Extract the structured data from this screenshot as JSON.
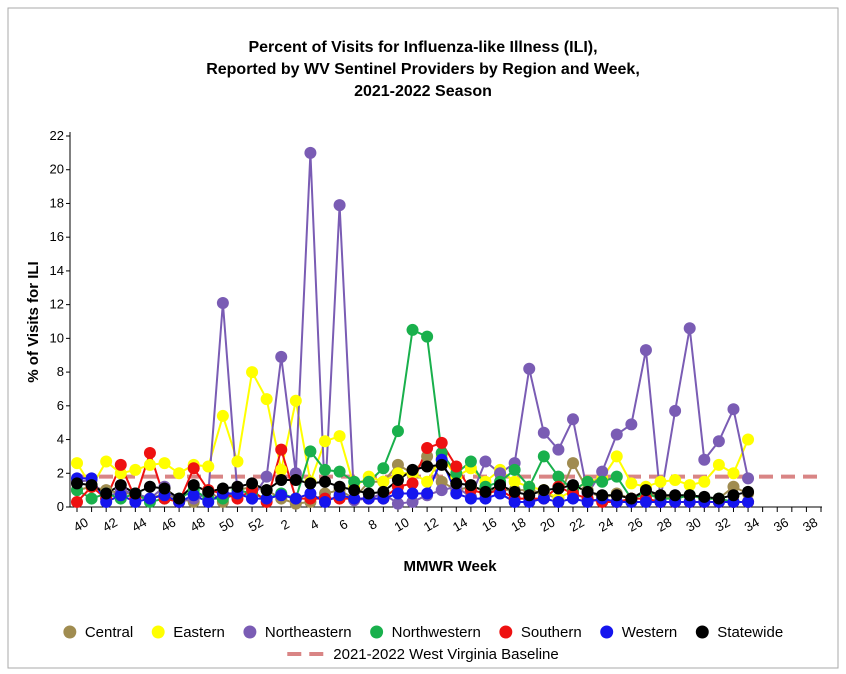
{
  "chart_data": {
    "type": "line",
    "title": [
      "Percent of Visits for Influenza-like Illness (ILI),",
      "Reported by WV Sentinel Providers by Region and Week,",
      "2021-2022 Season"
    ],
    "x_label": "MMWR Week",
    "y_label": "% of Visits for ILI",
    "categories": [
      "40",
      null,
      "42",
      null,
      "44",
      null,
      "46",
      null,
      "48",
      null,
      "50",
      null,
      "52",
      null,
      "2",
      null,
      "4",
      null,
      "6",
      null,
      "8",
      null,
      "10",
      null,
      "12",
      null,
      "14",
      null,
      "16",
      null,
      "18",
      null,
      "20",
      null,
      "22",
      null,
      "24",
      null,
      "26",
      null,
      "28",
      null,
      "30",
      null,
      "32",
      null,
      "34",
      null,
      "36",
      null,
      "38",
      null
    ],
    "ylim": [
      0,
      22
    ],
    "yticks": [
      0,
      2,
      4,
      6,
      8,
      10,
      12,
      14,
      16,
      18,
      20,
      22
    ],
    "series": [
      {
        "name": "Central",
        "color": "#a08c50",
        "values": [
          1.0,
          1.2,
          1.0,
          0.8,
          0.8,
          0.5,
          0.8,
          0.5,
          0.3,
          1.0,
          0.3,
          1.0,
          1.2,
          1.0,
          0.5,
          0.2,
          0.3,
          0.8,
          1.0,
          0.5,
          1.5,
          1.5,
          2.5,
          2.0,
          3.0,
          1.5,
          1.0,
          1.2,
          1.0,
          1.0,
          1.0,
          1.0,
          0.8,
          0.5,
          2.6,
          1.0,
          0.5,
          0.8,
          0.5,
          0.8,
          0.7,
          0.5,
          0.7,
          0.5,
          0.5,
          1.2,
          0.8,
          null,
          null,
          null,
          null,
          null
        ]
      },
      {
        "name": "Eastern",
        "color": "#ffff00",
        "values": [
          2.6,
          1.2,
          2.7,
          2.0,
          2.2,
          2.5,
          2.6,
          2.0,
          2.5,
          2.4,
          5.4,
          2.7,
          8.0,
          6.4,
          2.2,
          6.3,
          1.5,
          3.9,
          4.2,
          1.2,
          1.8,
          1.5,
          2.0,
          2.0,
          1.5,
          3.0,
          1.8,
          2.3,
          1.5,
          2.2,
          1.5,
          1.2,
          1.0,
          0.5,
          1.0,
          1.5,
          1.7,
          3.0,
          1.4,
          1.2,
          1.5,
          1.6,
          1.3,
          1.5,
          2.5,
          2.0,
          4.0,
          null,
          null,
          null,
          null,
          null
        ]
      },
      {
        "name": "Northeastern",
        "color": "#7a5cb4",
        "values": [
          1.5,
          1.6,
          0.5,
          1.0,
          0.8,
          0.5,
          1.2,
          0.3,
          0.5,
          0.8,
          12.1,
          0.8,
          0.5,
          1.8,
          8.9,
          2.0,
          21.0,
          0.5,
          17.9,
          0.4,
          0.5,
          0.8,
          0.2,
          0.3,
          0.7,
          1.0,
          1.2,
          0.6,
          2.7,
          2.0,
          2.6,
          8.2,
          4.4,
          3.4,
          5.2,
          0.8,
          2.1,
          4.3,
          4.9,
          9.3,
          0.5,
          5.7,
          10.6,
          2.8,
          3.9,
          5.8,
          1.7,
          null,
          null,
          null,
          null,
          null
        ]
      },
      {
        "name": "Northwestern",
        "color": "#19b04c",
        "values": [
          1.0,
          0.5,
          0.8,
          0.5,
          0.8,
          0.3,
          0.5,
          0.5,
          1.0,
          0.5,
          0.5,
          1.0,
          0.8,
          0.5,
          0.8,
          0.5,
          3.3,
          2.2,
          2.1,
          1.5,
          1.5,
          2.3,
          4.5,
          10.5,
          10.1,
          3.2,
          2.0,
          2.7,
          1.2,
          1.5,
          2.2,
          1.2,
          3.0,
          1.8,
          1.0,
          1.5,
          1.5,
          1.8,
          0.5,
          0.8,
          0.5,
          0.5,
          0.7,
          0.5,
          0.5,
          0.3,
          0.3,
          null,
          null,
          null,
          null,
          null
        ]
      },
      {
        "name": "Southern",
        "color": "#ee1111",
        "values": [
          0.3,
          1.2,
          0.5,
          2.5,
          0.5,
          3.2,
          0.5,
          0.3,
          2.3,
          1.0,
          0.8,
          0.5,
          1.0,
          0.3,
          3.4,
          0.5,
          0.5,
          0.5,
          0.5,
          0.5,
          0.5,
          0.5,
          1.2,
          1.4,
          3.5,
          3.8,
          2.4,
          1.0,
          0.8,
          1.0,
          0.5,
          0.5,
          0.5,
          1.2,
          0.8,
          0.5,
          0.3,
          0.3,
          0.5,
          0.5,
          0.3,
          0.3,
          0.3,
          0.3,
          0.3,
          0.3,
          0.3,
          null,
          null,
          null,
          null,
          null
        ]
      },
      {
        "name": "Western",
        "color": "#1515ee",
        "values": [
          1.7,
          1.7,
          0.3,
          0.7,
          0.3,
          0.5,
          0.7,
          0.3,
          0.7,
          0.3,
          0.8,
          0.8,
          0.5,
          0.5,
          0.7,
          0.5,
          0.8,
          0.3,
          0.7,
          0.5,
          0.5,
          0.5,
          0.8,
          0.8,
          0.8,
          2.8,
          0.8,
          0.5,
          0.5,
          0.8,
          0.3,
          0.3,
          0.5,
          0.3,
          0.5,
          0.3,
          0.5,
          0.3,
          0.3,
          0.3,
          0.3,
          0.3,
          0.3,
          0.3,
          0.3,
          0.3,
          0.3,
          null,
          null,
          null,
          null,
          null
        ]
      },
      {
        "name": "Statewide",
        "color": "#000000",
        "values": [
          1.4,
          1.3,
          0.8,
          1.3,
          0.8,
          1.2,
          1.1,
          0.5,
          1.3,
          0.9,
          1.1,
          1.2,
          1.4,
          1.0,
          1.6,
          1.6,
          1.4,
          1.5,
          1.2,
          1.0,
          0.8,
          0.9,
          1.6,
          2.2,
          2.4,
          2.5,
          1.4,
          1.3,
          0.9,
          1.3,
          0.9,
          0.7,
          1.0,
          1.1,
          1.3,
          0.9,
          0.7,
          0.7,
          0.5,
          1.0,
          0.7,
          0.7,
          0.7,
          0.6,
          0.5,
          0.7,
          0.9,
          null,
          null,
          null,
          null,
          null
        ]
      }
    ],
    "baseline": {
      "name": "2021-2022 West Virginia Baseline",
      "value": 1.8,
      "color": "#d98585"
    }
  }
}
